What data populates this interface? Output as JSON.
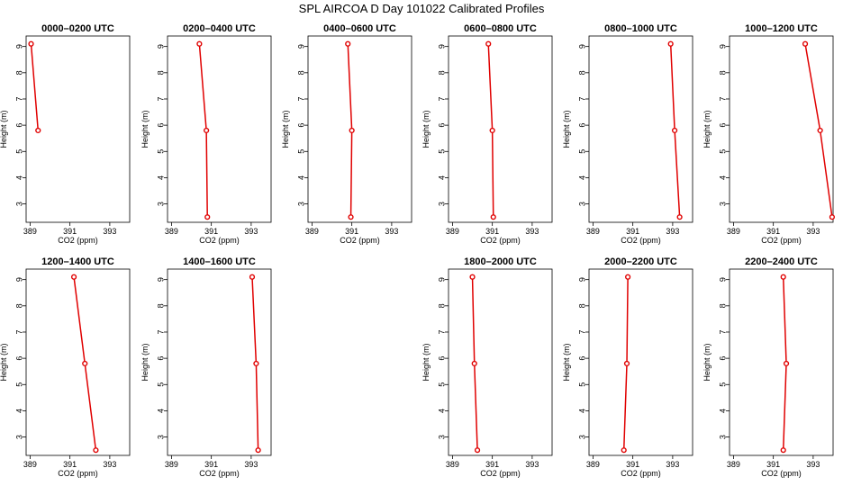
{
  "figure_title": "SPL AIRCOA D  Day 101022  Calibrated Profiles",
  "colors": {
    "series": "#e00000",
    "axis": "#000000"
  },
  "chart_data": [
    {
      "type": "line",
      "title": "0000–0200 UTC",
      "xlabel": "CO2 (ppm)",
      "ylabel": "Height (m)",
      "xlim": [
        388.8,
        394
      ],
      "ylim": [
        2.3,
        9.4
      ],
      "x_ticks": [
        389,
        391,
        393
      ],
      "y_ticks": [
        3,
        4,
        5,
        6,
        7,
        8,
        9
      ],
      "x": [
        389.05,
        389.4
      ],
      "y": [
        9.1,
        5.8
      ]
    },
    {
      "type": "line",
      "title": "0200–0400 UTC",
      "xlabel": "CO2 (ppm)",
      "ylabel": "Height (m)",
      "xlim": [
        388.8,
        394
      ],
      "ylim": [
        2.3,
        9.4
      ],
      "x_ticks": [
        389,
        391,
        393
      ],
      "y_ticks": [
        3,
        4,
        5,
        6,
        7,
        8,
        9
      ],
      "x": [
        390.4,
        390.75,
        390.8
      ],
      "y": [
        9.1,
        5.8,
        2.5
      ]
    },
    {
      "type": "line",
      "title": "0400–0600 UTC",
      "xlabel": "CO2 (ppm)",
      "ylabel": "Height (m)",
      "xlim": [
        388.8,
        394
      ],
      "ylim": [
        2.3,
        9.4
      ],
      "x_ticks": [
        389,
        391,
        393
      ],
      "y_ticks": [
        3,
        4,
        5,
        6,
        7,
        8,
        9
      ],
      "x": [
        390.8,
        391.0,
        390.95
      ],
      "y": [
        9.1,
        5.8,
        2.5
      ]
    },
    {
      "type": "line",
      "title": "0600–0800 UTC",
      "xlabel": "CO2 (ppm)",
      "ylabel": "Height (m)",
      "xlim": [
        388.8,
        394
      ],
      "ylim": [
        2.3,
        9.4
      ],
      "x_ticks": [
        389,
        391,
        393
      ],
      "y_ticks": [
        3,
        4,
        5,
        6,
        7,
        8,
        9
      ],
      "x": [
        390.8,
        391.0,
        391.05
      ],
      "y": [
        9.1,
        5.8,
        2.5
      ]
    },
    {
      "type": "line",
      "title": "0800–1000 UTC",
      "xlabel": "CO2 (ppm)",
      "ylabel": "Height (m)",
      "xlim": [
        388.8,
        394
      ],
      "ylim": [
        2.3,
        9.4
      ],
      "x_ticks": [
        389,
        391,
        393
      ],
      "y_ticks": [
        3,
        4,
        5,
        6,
        7,
        8,
        9
      ],
      "x": [
        392.9,
        393.1,
        393.35
      ],
      "y": [
        9.1,
        5.8,
        2.5
      ]
    },
    {
      "type": "line",
      "title": "1000–1200 UTC",
      "xlabel": "CO2 (ppm)",
      "ylabel": "Height (m)",
      "xlim": [
        388.8,
        394
      ],
      "ylim": [
        2.3,
        9.4
      ],
      "x_ticks": [
        389,
        391,
        393
      ],
      "y_ticks": [
        3,
        4,
        5,
        6,
        7,
        8,
        9
      ],
      "x": [
        392.6,
        393.35,
        393.95
      ],
      "y": [
        9.1,
        5.8,
        2.5
      ]
    },
    {
      "type": "line",
      "title": "1200–1400 UTC",
      "xlabel": "CO2 (ppm)",
      "ylabel": "Height (m)",
      "xlim": [
        388.8,
        394
      ],
      "ylim": [
        2.3,
        9.4
      ],
      "x_ticks": [
        389,
        391,
        393
      ],
      "y_ticks": [
        3,
        4,
        5,
        6,
        7,
        8,
        9
      ],
      "x": [
        391.2,
        391.75,
        392.3
      ],
      "y": [
        9.1,
        5.8,
        2.5
      ]
    },
    {
      "type": "line",
      "title": "1400–1600 UTC",
      "xlabel": "CO2 (ppm)",
      "ylabel": "Height (m)",
      "xlim": [
        388.8,
        394
      ],
      "ylim": [
        2.3,
        9.4
      ],
      "x_ticks": [
        389,
        391,
        393
      ],
      "y_ticks": [
        3,
        4,
        5,
        6,
        7,
        8,
        9
      ],
      "x": [
        393.05,
        393.25,
        393.35
      ],
      "y": [
        9.1,
        5.8,
        2.5
      ]
    },
    {
      "type": "line",
      "title": "1800–2000 UTC",
      "xlabel": "CO2 (ppm)",
      "ylabel": "Height (m)",
      "xlim": [
        388.8,
        394
      ],
      "ylim": [
        2.3,
        9.4
      ],
      "x_ticks": [
        389,
        391,
        393
      ],
      "y_ticks": [
        3,
        4,
        5,
        6,
        7,
        8,
        9
      ],
      "x": [
        390.0,
        390.1,
        390.25
      ],
      "y": [
        9.1,
        5.8,
        2.5
      ]
    },
    {
      "type": "line",
      "title": "2000–2200 UTC",
      "xlabel": "CO2 (ppm)",
      "ylabel": "Height (m)",
      "xlim": [
        388.8,
        394
      ],
      "ylim": [
        2.3,
        9.4
      ],
      "x_ticks": [
        389,
        391,
        393
      ],
      "y_ticks": [
        3,
        4,
        5,
        6,
        7,
        8,
        9
      ],
      "x": [
        390.75,
        390.7,
        390.55
      ],
      "y": [
        9.1,
        5.8,
        2.5
      ]
    },
    {
      "type": "line",
      "title": "2200–2400 UTC",
      "xlabel": "CO2 (ppm)",
      "ylabel": "Height (m)",
      "xlim": [
        388.8,
        394
      ],
      "ylim": [
        2.3,
        9.4
      ],
      "x_ticks": [
        389,
        391,
        393
      ],
      "y_ticks": [
        3,
        4,
        5,
        6,
        7,
        8,
        9
      ],
      "x": [
        391.5,
        391.65,
        391.5
      ],
      "y": [
        9.1,
        5.8,
        2.5
      ]
    }
  ]
}
